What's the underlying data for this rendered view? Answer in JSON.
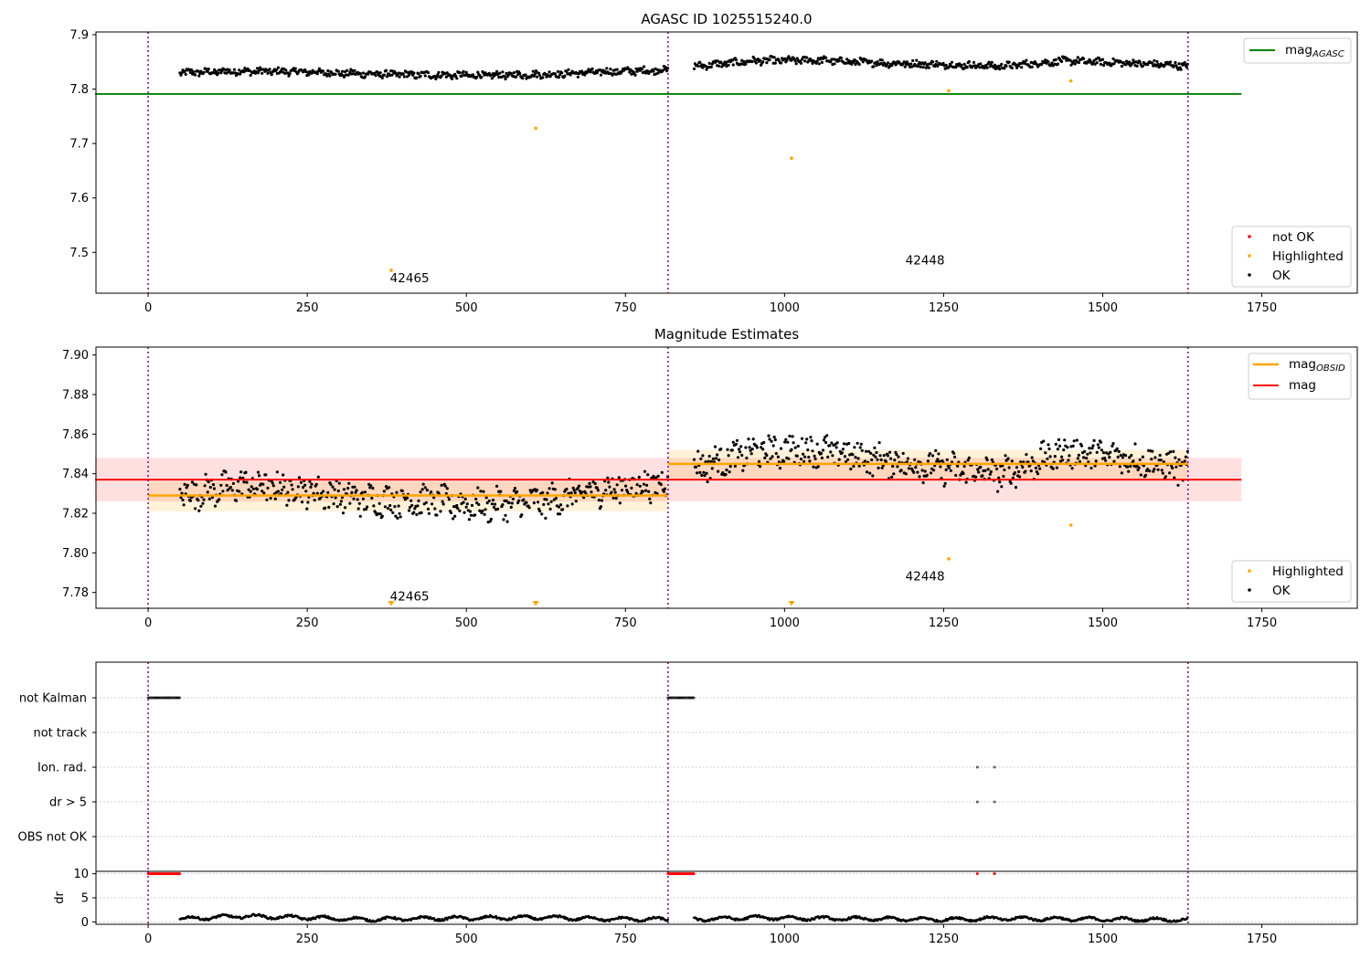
{
  "chart_data": [
    {
      "type": "scatter",
      "title": "AGASC ID 1025515240.0",
      "xlim": [
        -82,
        1900
      ],
      "ylim": [
        7.425,
        7.905
      ],
      "xticks": [
        0,
        250,
        500,
        750,
        1000,
        1250,
        1500,
        1750
      ],
      "yticks": [
        7.5,
        7.6,
        7.7,
        7.8,
        7.9
      ],
      "vlines": [
        0,
        817,
        1634
      ],
      "mag_agasc": {
        "value": 7.791,
        "x": [
          0,
          1718
        ]
      },
      "ok_segments": [
        {
          "x": [
            50,
            817
          ],
          "base": [
            7.83,
            7.833,
            7.832,
            7.828,
            7.826,
            7.825,
            7.827,
            7.832,
            7.835
          ],
          "amp": 0.006
        },
        {
          "x": [
            858,
            1634
          ],
          "base": [
            7.842,
            7.852,
            7.853,
            7.848,
            7.845,
            7.842,
            7.852,
            7.848,
            7.843
          ],
          "amp": 0.006
        }
      ],
      "highlighted": {
        "x": [
          382,
          609,
          1011,
          1258,
          1450
        ],
        "y": [
          7.467,
          7.728,
          7.673,
          7.797,
          7.815
        ]
      },
      "annotations": [
        {
          "text": "42465",
          "x": 380,
          "y": 7.445
        },
        {
          "text": "42448",
          "x": 1190,
          "y": 7.478
        }
      ],
      "legend_top": [
        {
          "label": "mag",
          "sub": "AGASC",
          "color": "#008000"
        }
      ],
      "legend_bottom": [
        {
          "label": "not OK",
          "color": "#ff0000"
        },
        {
          "label": "Highlighted",
          "color": "#ffa500"
        },
        {
          "label": "OK",
          "color": "#000000"
        }
      ]
    },
    {
      "type": "scatter",
      "title": "Magnitude Estimates",
      "xlim": [
        -82,
        1900
      ],
      "ylim": [
        7.772,
        7.904
      ],
      "xticks": [
        0,
        250,
        500,
        750,
        1000,
        1250,
        1500,
        1750
      ],
      "yticks": [
        7.78,
        7.8,
        7.82,
        7.84,
        7.86,
        7.88,
        7.9
      ],
      "vlines": [
        0,
        817,
        1634
      ],
      "mag": {
        "value": 7.837,
        "band": [
          7.826,
          7.848
        ],
        "x": [
          0,
          1718
        ]
      },
      "mag_obsid": [
        {
          "x": [
            0,
            817
          ],
          "value": 7.829,
          "band": [
            7.821,
            7.836
          ]
        },
        {
          "x": [
            817,
            1634
          ],
          "value": 7.845,
          "band": [
            7.837,
            7.852
          ]
        }
      ],
      "ok_segments": [
        {
          "x": [
            50,
            817
          ],
          "base": [
            7.829,
            7.834,
            7.832,
            7.827,
            7.826,
            7.824,
            7.826,
            7.832,
            7.835
          ],
          "amp": 0.007
        },
        {
          "x": [
            858,
            1634
          ],
          "base": [
            7.843,
            7.851,
            7.852,
            7.847,
            7.843,
            7.84,
            7.851,
            7.848,
            7.842
          ],
          "amp": 0.007
        }
      ],
      "highlighted": {
        "x": [
          1258,
          1450
        ],
        "y": [
          7.797,
          7.814
        ]
      },
      "below_range_markers": [
        382,
        609,
        1011
      ],
      "annotations": [
        {
          "text": "42465",
          "x": 380,
          "y": 7.776
        },
        {
          "text": "42448",
          "x": 1190,
          "y": 7.786
        }
      ],
      "legend_top": [
        {
          "label": "mag",
          "sub": "OBSID",
          "color": "#ffa500"
        },
        {
          "label": "mag",
          "sub": "",
          "color": "#ff0000"
        }
      ],
      "legend_bottom": [
        {
          "label": "Highlighted",
          "color": "#ffa500"
        },
        {
          "label": "OK",
          "color": "#000000"
        }
      ]
    },
    {
      "type": "scatter",
      "xlim": [
        -82,
        1900
      ],
      "rows": [
        "not Kalman",
        "not track",
        "Ion. rad.",
        "dr > 5",
        "OBS not OK"
      ],
      "vlines": [
        0,
        817,
        1634
      ],
      "flags": [
        {
          "row": "not Kalman",
          "x_ranges": [
            [
              0,
              50
            ],
            [
              817,
              858
            ]
          ]
        },
        {
          "row": "Ion. rad.",
          "x": [
            1303,
            1330
          ]
        },
        {
          "row": "dr > 5",
          "x": [
            1303,
            1330
          ]
        }
      ]
    },
    {
      "type": "scatter",
      "ylabel": "dr",
      "xlim": [
        -82,
        1900
      ],
      "ylim": [
        -0.5,
        10.5
      ],
      "xticks": [
        0,
        250,
        500,
        750,
        1000,
        1250,
        1500,
        1750
      ],
      "yticks": [
        0,
        5,
        10
      ],
      "vlines": [
        0,
        817,
        1634
      ],
      "capped_points": {
        "value": 10,
        "x_ranges": [
          [
            0,
            50
          ],
          [
            817,
            858
          ]
        ],
        "x": [
          1303,
          1330
        ]
      },
      "dr_segments": [
        {
          "x": [
            50,
            817
          ],
          "base": [
            0.6,
            1.2,
            0.9,
            0.5,
            0.7,
            0.8,
            0.9,
            0.6,
            0.5
          ]
        },
        {
          "x": [
            858,
            1634
          ],
          "base": [
            0.5,
            0.9,
            0.7,
            0.6,
            0.5,
            0.7,
            0.6,
            0.5,
            0.4
          ]
        }
      ]
    }
  ]
}
